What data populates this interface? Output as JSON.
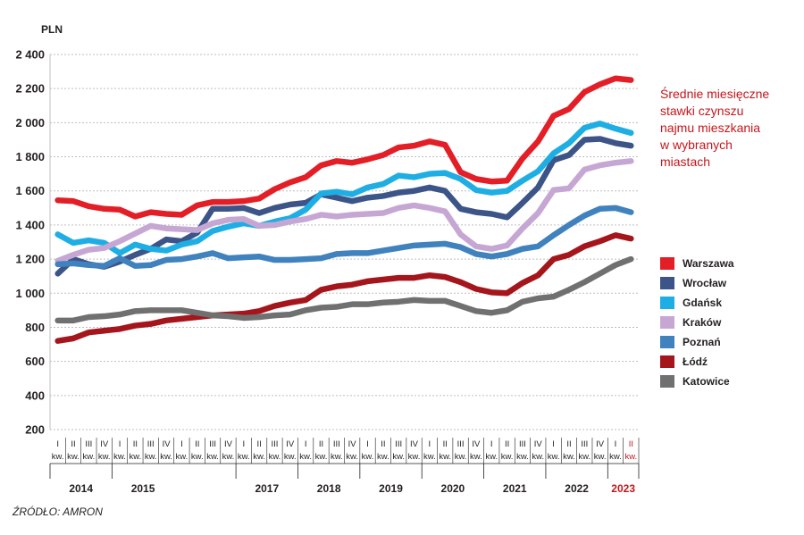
{
  "chart_data": {
    "type": "line",
    "title": "Średnie miesięczne\nstawki czynszu\nnajmu mieszkania\nw wybranych\nmiastach",
    "ylabel": "PLN",
    "ylim": [
      200,
      2400
    ],
    "yticks": [
      "200",
      "400",
      "600",
      "800",
      "1 000",
      "1 200",
      "1 400",
      "1 600",
      "1 800",
      "2 000",
      "2 200",
      "2 400"
    ],
    "x_quarters": [
      "I",
      "II",
      "III",
      "IV",
      "I",
      "II",
      "III",
      "IV",
      "I",
      "II",
      "III",
      "IV",
      "I",
      "II",
      "III",
      "IV",
      "I",
      "II",
      "III",
      "IV",
      "I",
      "II",
      "III",
      "IV",
      "I",
      "II",
      "III",
      "IV",
      "I",
      "II",
      "III",
      "IV",
      "I",
      "II",
      "III",
      "IV",
      "I",
      "II"
    ],
    "x_quarter_suffix": "kw.",
    "highlight_last": true,
    "years": [
      {
        "label": "2014",
        "from": 0,
        "to": 3
      },
      {
        "label": "2015",
        "from": 4,
        "to": 7
      },
      {
        "label": "2017",
        "from": 12,
        "to": 15
      },
      {
        "label": "2018",
        "from": 16,
        "to": 19
      },
      {
        "label": "2019",
        "from": 20,
        "to": 23
      },
      {
        "label": "2020",
        "from": 24,
        "to": 27
      },
      {
        "label": "2021",
        "from": 28,
        "to": 31
      },
      {
        "label": "2022",
        "from": 32,
        "to": 35
      },
      {
        "label": "2023",
        "from": 36,
        "to": 37,
        "highlight": true
      }
    ],
    "series": [
      {
        "name": "Warszawa",
        "color": "#e31e26",
        "values": [
          1545,
          1540,
          1510,
          1495,
          1490,
          1450,
          1475,
          1465,
          1460,
          1515,
          1535,
          1535,
          1540,
          1555,
          1610,
          1650,
          1680,
          1750,
          1775,
          1765,
          1785,
          1810,
          1855,
          1865,
          1890,
          1870,
          1710,
          1670,
          1655,
          1660,
          1790,
          1890,
          2040,
          2080,
          2180,
          2225,
          2260,
          2250
        ]
      },
      {
        "name": "Wrocław",
        "color": "#3c5488",
        "values": [
          1115,
          1200,
          1170,
          1155,
          1185,
          1225,
          1260,
          1315,
          1305,
          1355,
          1495,
          1495,
          1500,
          1470,
          1500,
          1520,
          1530,
          1580,
          1560,
          1540,
          1560,
          1570,
          1590,
          1600,
          1620,
          1600,
          1495,
          1475,
          1465,
          1445,
          1530,
          1620,
          1780,
          1810,
          1900,
          1905,
          1880,
          1865
        ]
      },
      {
        "name": "Gdańsk",
        "color": "#1eaee4",
        "values": [
          1345,
          1295,
          1310,
          1295,
          1235,
          1285,
          1260,
          1250,
          1285,
          1305,
          1365,
          1390,
          1410,
          1395,
          1420,
          1440,
          1490,
          1585,
          1595,
          1580,
          1620,
          1640,
          1690,
          1680,
          1700,
          1705,
          1670,
          1605,
          1590,
          1600,
          1660,
          1715,
          1820,
          1880,
          1970,
          1995,
          1965,
          1940
        ]
      },
      {
        "name": "Kraków",
        "color": "#c6a7d4",
        "values": [
          1190,
          1225,
          1255,
          1265,
          1305,
          1350,
          1395,
          1380,
          1375,
          1370,
          1410,
          1430,
          1435,
          1395,
          1400,
          1420,
          1435,
          1460,
          1450,
          1460,
          1465,
          1470,
          1500,
          1515,
          1500,
          1480,
          1345,
          1275,
          1260,
          1280,
          1380,
          1470,
          1605,
          1615,
          1725,
          1750,
          1765,
          1775
        ]
      },
      {
        "name": "Poznań",
        "color": "#3f82bd",
        "values": [
          1170,
          1175,
          1165,
          1160,
          1205,
          1160,
          1165,
          1195,
          1200,
          1215,
          1235,
          1205,
          1210,
          1215,
          1195,
          1195,
          1200,
          1205,
          1230,
          1235,
          1235,
          1250,
          1265,
          1280,
          1285,
          1290,
          1270,
          1230,
          1215,
          1230,
          1260,
          1275,
          1340,
          1400,
          1455,
          1495,
          1500,
          1475
        ]
      },
      {
        "name": "Łódź",
        "color": "#a4161c",
        "values": [
          720,
          735,
          770,
          780,
          790,
          810,
          820,
          840,
          850,
          860,
          870,
          875,
          880,
          895,
          925,
          945,
          960,
          1020,
          1040,
          1050,
          1070,
          1080,
          1090,
          1090,
          1105,
          1095,
          1065,
          1025,
          1005,
          1000,
          1060,
          1105,
          1200,
          1225,
          1275,
          1305,
          1340,
          1320
        ]
      },
      {
        "name": "Katowice",
        "color": "#707070",
        "values": [
          840,
          840,
          860,
          865,
          875,
          895,
          900,
          900,
          900,
          885,
          870,
          865,
          855,
          860,
          870,
          875,
          900,
          915,
          920,
          935,
          935,
          945,
          950,
          960,
          955,
          955,
          925,
          895,
          885,
          900,
          950,
          970,
          980,
          1020,
          1065,
          1115,
          1165,
          1200
        ]
      }
    ]
  },
  "source": "ŹRÓDŁO: AMRON"
}
